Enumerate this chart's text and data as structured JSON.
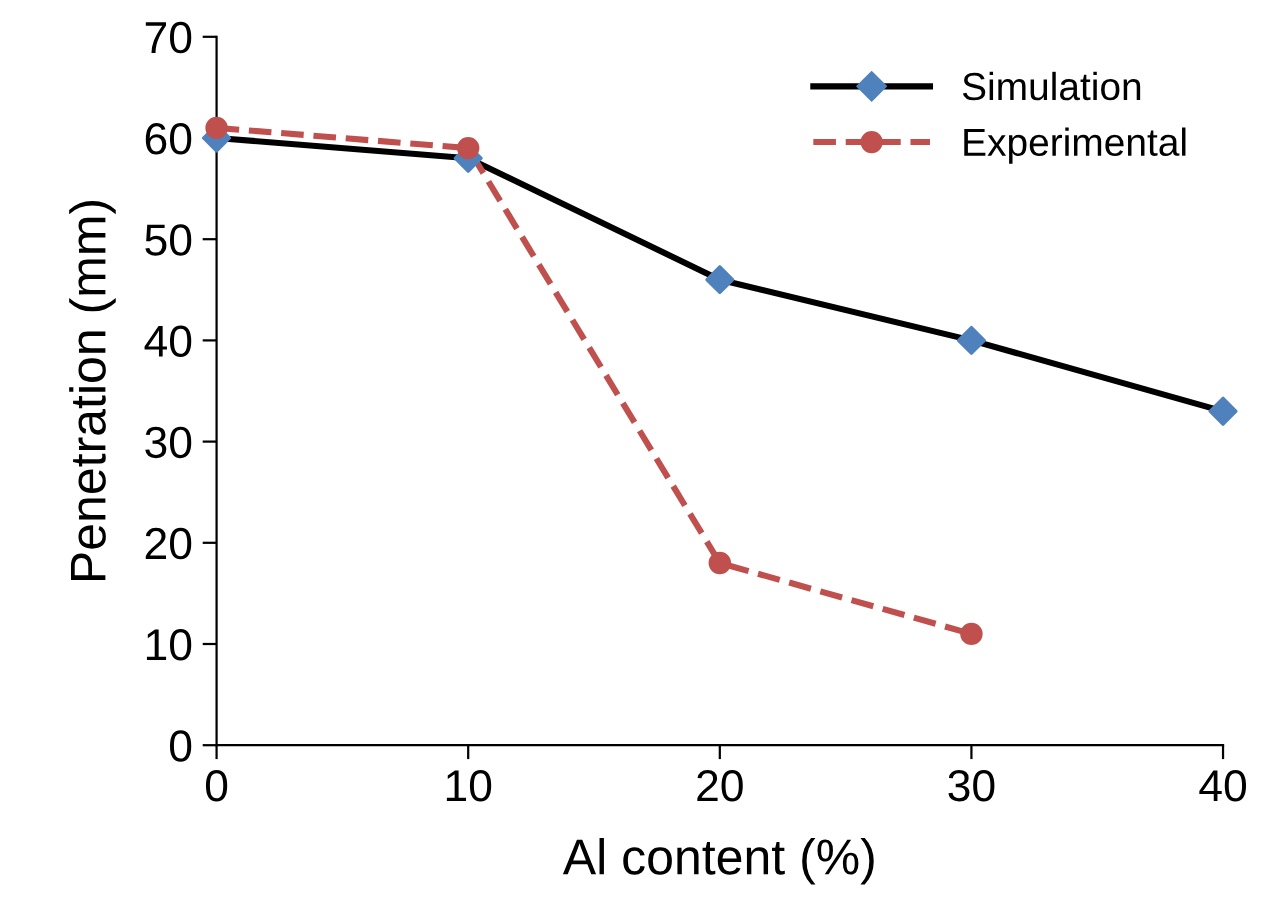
{
  "chart_data": {
    "type": "line",
    "xlabel": "Al content (%)",
    "ylabel": "Penetration (mm)",
    "x": [
      0,
      10,
      20,
      30,
      40
    ],
    "series": [
      {
        "name": "Simulation",
        "color": "#000000",
        "colors": [
          "#4f81bd",
          "#4f81bd",
          "#4f81bd",
          "#4f81bd",
          "#4f81bd"
        ],
        "marker": "diamond",
        "line_style": "solid",
        "values": [
          60,
          58,
          46,
          40,
          33
        ]
      },
      {
        "name": "Experimental",
        "color": "#c0504d",
        "marker": "circle",
        "line_style": "dashed",
        "values": [
          61,
          59,
          18,
          11,
          null
        ]
      }
    ],
    "xlim": [
      0,
      40
    ],
    "xticks": [
      0,
      10,
      20,
      30,
      40
    ],
    "ylim": [
      0,
      70
    ],
    "yticks": [
      0,
      10,
      20,
      30,
      40,
      50,
      60,
      70
    ],
    "grid": false,
    "legend": "top right"
  }
}
